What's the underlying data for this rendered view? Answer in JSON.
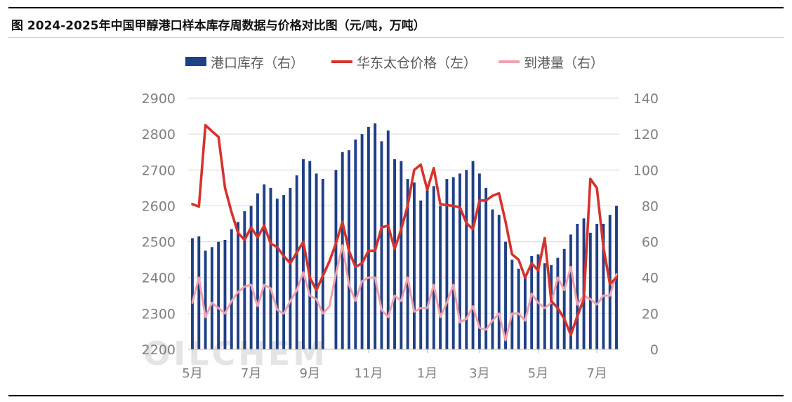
{
  "title": "图  2024-2025年中国甲醇港口样本库存周数据与价格对比图（元/吨，万吨）",
  "watermark": "OILCHEM",
  "colors": {
    "inventory": "#1f3f86",
    "price": "#d6322c",
    "arrival": "#f2a0ac",
    "axis_text": "#7f7f7f",
    "grid": "#d9d9d9"
  },
  "chart_data": {
    "type": "bar+line",
    "grid": true,
    "legend_position": "top",
    "legend": [
      {
        "key": "inventory",
        "label": "港口库存（右）"
      },
      {
        "key": "price",
        "label": "华东太仓价格（左）"
      },
      {
        "key": "arrival",
        "label": "到港量（右）"
      }
    ],
    "left_axis": {
      "min": 2200,
      "max": 2900,
      "step": 100,
      "ticks": [
        "2200",
        "2300",
        "2400",
        "2500",
        "2600",
        "2700",
        "2800",
        "2900"
      ]
    },
    "right_axis": {
      "min": 0,
      "max": 140,
      "step": 20,
      "ticks": [
        "0",
        "20",
        "40",
        "60",
        "80",
        "100",
        "120",
        "140"
      ]
    },
    "x_ticks": [
      {
        "label": "5月",
        "week": 0
      },
      {
        "label": "7月",
        "week": 9
      },
      {
        "label": "9月",
        "week": 18
      },
      {
        "label": "11月",
        "week": 27
      },
      {
        "label": "1月",
        "week": 36
      },
      {
        "label": "3月",
        "week": 44
      },
      {
        "label": "5月",
        "week": 53
      },
      {
        "label": "7月",
        "week": 62
      }
    ],
    "week_count": 66,
    "series": [
      {
        "key": "inventory",
        "name": "港口库存（右）",
        "axis": "right",
        "type": "bar",
        "values": [
          62,
          63,
          55,
          57,
          60,
          61,
          67,
          71,
          77,
          80,
          87,
          92,
          90,
          84,
          86,
          90,
          97,
          106,
          105,
          98,
          95,
          null,
          100,
          110,
          111,
          117,
          120,
          124,
          126,
          116,
          122,
          106,
          105,
          95,
          93,
          83,
          90,
          91,
          80,
          95,
          96,
          98,
          100,
          105,
          98,
          90,
          78,
          75,
          60,
          50,
          45,
          40,
          52,
          53,
          48,
          47,
          51,
          56,
          64,
          70,
          73,
          65,
          70,
          70,
          75,
          80
        ]
      },
      {
        "key": "price",
        "name": "华东太仓价格（左）",
        "axis": "left",
        "type": "line",
        "values": [
          2605,
          2598,
          2825,
          2808,
          2792,
          2650,
          2582,
          2525,
          2505,
          2540,
          2512,
          2545,
          2495,
          2485,
          2460,
          2440,
          2470,
          2500,
          2400,
          2365,
          2405,
          2445,
          2495,
          2555,
          2475,
          2430,
          2440,
          2475,
          2475,
          2540,
          2545,
          2480,
          2535,
          2600,
          2700,
          2715,
          2645,
          2705,
          2605,
          2602,
          2600,
          2596,
          2552,
          2535,
          2615,
          2615,
          2628,
          2635,
          2556,
          2465,
          2450,
          2400,
          2440,
          2420,
          2510,
          2335,
          2315,
          2285,
          2240,
          2292,
          2340,
          2675,
          2650,
          2485,
          2382,
          2400
        ]
      },
      {
        "key": "arrival",
        "name": "到港量（右）",
        "axis": "right",
        "type": "line",
        "values": [
          26,
          40,
          18,
          26,
          23,
          20,
          27,
          32,
          35,
          36,
          24,
          36,
          34,
          22,
          20,
          27,
          33,
          43,
          30,
          28,
          20,
          24,
          42,
          58,
          36,
          27,
          38,
          40,
          40,
          22,
          18,
          30,
          27,
          40,
          21,
          23,
          23,
          36,
          18,
          26,
          36,
          15,
          17,
          24,
          12,
          11,
          16,
          20,
          5,
          20,
          20,
          16,
          31,
          26,
          23,
          26,
          40,
          33,
          46,
          25,
          30,
          28,
          25,
          30,
          30,
          42
        ]
      }
    ]
  }
}
